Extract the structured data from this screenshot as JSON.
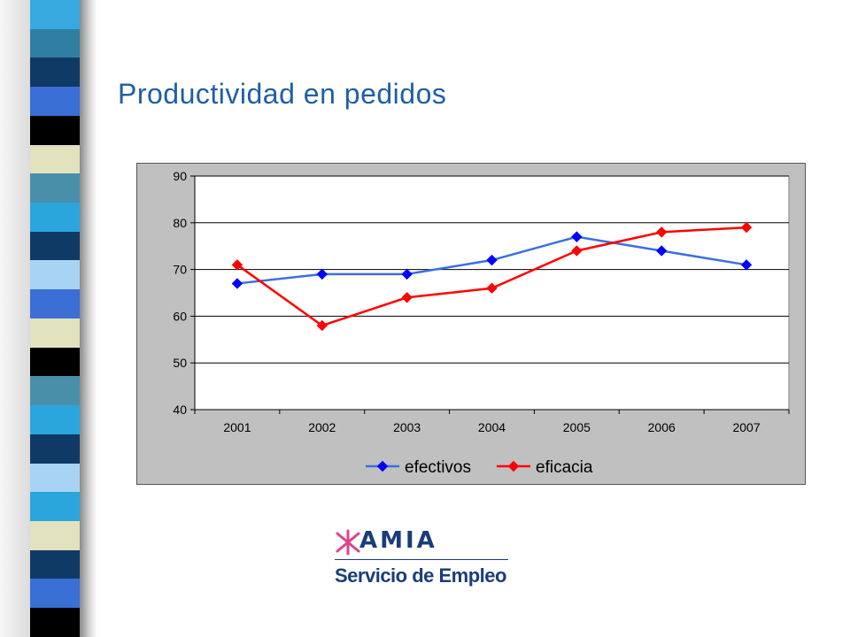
{
  "slide": {
    "title": "Productividad en pedidos"
  },
  "logo": {
    "wordmark": "AMIA",
    "subtitle": "Servicio de Empleo",
    "colors": {
      "mark": "#e0438a",
      "text": "#1a3d7a"
    }
  },
  "decor": {
    "strip_colors": [
      "#38a9df",
      "#2f7fa3",
      "#0f3a66",
      "#3a6fd6",
      "#000000",
      "#e2e2bf",
      "#4a8faa",
      "#2aa6dc",
      "#0f3a66",
      "#a9d3f2",
      "#3b6fd6",
      "#e2e2bf",
      "#000000",
      "#4a8faa",
      "#2aa6dc",
      "#0f3a66",
      "#a9d3f2",
      "#2aa6dc",
      "#e2e2bf",
      "#0f3a66",
      "#3a6fd6",
      "#000000"
    ]
  },
  "chart_data": {
    "type": "line",
    "categories": [
      "2001",
      "2002",
      "2003",
      "2004",
      "2005",
      "2006",
      "2007"
    ],
    "series": [
      {
        "name": "efectivos",
        "values": [
          67,
          69,
          69,
          72,
          77,
          74,
          71
        ],
        "color": "#0000ff",
        "line_color": "#3a6fe0"
      },
      {
        "name": "eficacia",
        "values": [
          71,
          58,
          64,
          66,
          74,
          78,
          79
        ],
        "color": "#ff0000",
        "line_color": "#ff0000"
      }
    ],
    "ylim": [
      40,
      90
    ],
    "yticks": [
      40,
      50,
      60,
      70,
      80,
      90
    ],
    "grid": true,
    "legend": "bottom",
    "plot_background": "#ffffff",
    "chart_background": "#c0c0c0"
  }
}
